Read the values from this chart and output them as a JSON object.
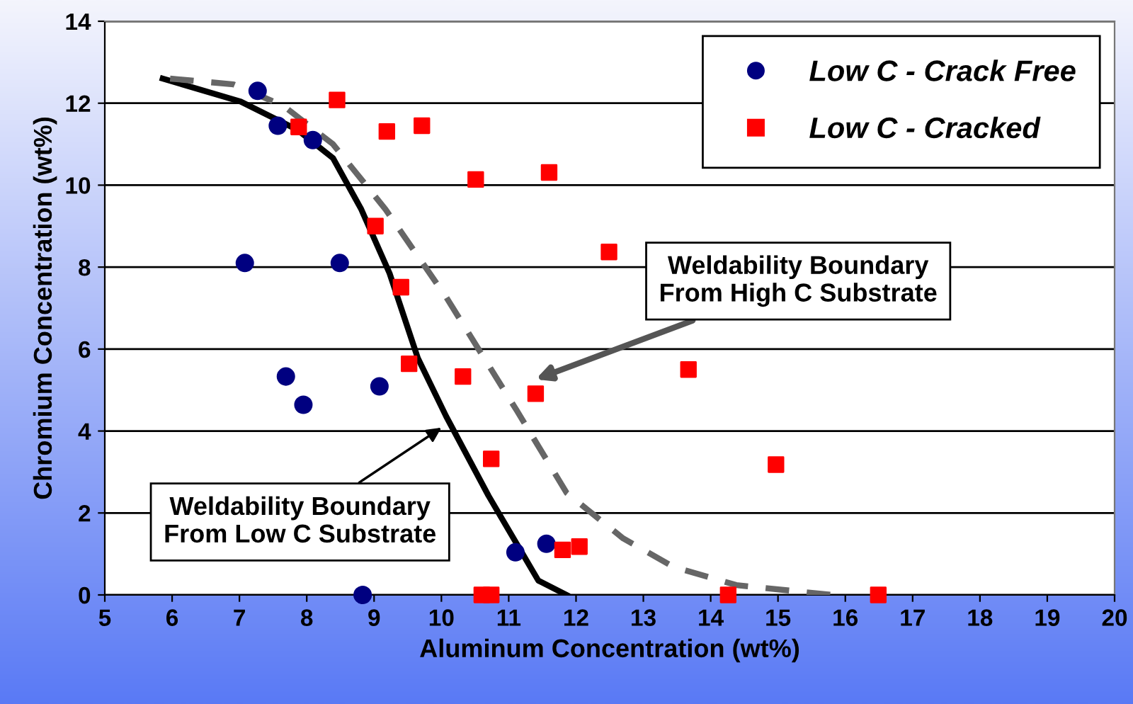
{
  "chart_data": {
    "type": "scatter",
    "xlabel": "Aluminum Concentration (wt%)",
    "ylabel": "Chromium Concentration (wt%)",
    "xlim": [
      5,
      20
    ],
    "xticks": [
      5,
      6,
      7,
      8,
      9,
      10,
      11,
      12,
      13,
      14,
      15,
      16,
      17,
      18,
      19,
      20
    ],
    "ylim": [
      0,
      14
    ],
    "yticks": [
      0,
      2,
      4,
      6,
      8,
      10,
      12,
      14
    ],
    "grid": "y",
    "legend": "top right",
    "series": [
      {
        "name": "Low C - Crack Free",
        "marker": "circle",
        "color": "#000080",
        "x": [
          7.27,
          7.57,
          8.09,
          7.08,
          8.49,
          7.69,
          7.95,
          9.08,
          8.83,
          11.1,
          11.56
        ],
        "values": [
          12.3,
          11.45,
          11.1,
          8.1,
          8.1,
          5.33,
          4.64,
          5.09,
          0,
          1.04,
          1.25
        ]
      },
      {
        "name": "Low C - Cracked",
        "marker": "square",
        "color": "#ff0000",
        "x": [
          8.45,
          7.88,
          9.19,
          9.71,
          10.51,
          11.6,
          9.02,
          9.4,
          9.52,
          10.32,
          11.4,
          10.74,
          10.6,
          10.74,
          11.8,
          12.05,
          12.49,
          13.67,
          14.97,
          14.26,
          16.49
        ],
        "values": [
          12.08,
          11.42,
          11.31,
          11.45,
          10.14,
          10.31,
          9.0,
          7.51,
          5.64,
          5.33,
          4.91,
          3.32,
          0,
          0,
          1.1,
          1.18,
          8.37,
          5.5,
          3.18,
          0,
          0
        ]
      },
      {
        "type": "line",
        "marker": "none",
        "line_style": "solid",
        "color": "#000000",
        "x": [
          5.86,
          7.02,
          7.86,
          8.39,
          8.81,
          9.23,
          9.65,
          10.07,
          10.7,
          11.44,
          11.86
        ],
        "values": [
          12.6,
          12.04,
          11.35,
          10.66,
          9.41,
          7.85,
          5.78,
          4.36,
          2.42,
          0.35,
          0
        ]
      },
      {
        "type": "line",
        "marker": "none",
        "line_style": "dashed",
        "color": "#666666",
        "x": [
          5.97,
          6.91,
          7.65,
          8.39,
          9.17,
          10.07,
          11.12,
          11.86,
          12.7,
          13.44,
          14.38,
          15.81
        ],
        "values": [
          12.6,
          12.46,
          11.94,
          11.0,
          9.41,
          7.27,
          4.5,
          2.49,
          1.38,
          0.69,
          0.24,
          0
        ]
      }
    ],
    "annotations": [
      {
        "text": "Weldability Boundary\nFrom High C Substrate",
        "x": 11.4,
        "y": 5.26
      },
      {
        "text": "Weldability Boundary\nFrom Low C Substrate",
        "x": 10.0,
        "y": 4.08
      }
    ]
  }
}
